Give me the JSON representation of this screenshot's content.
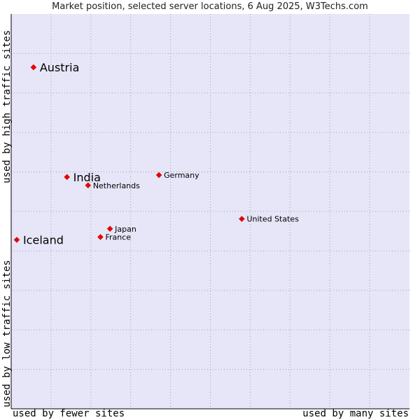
{
  "chart_data": {
    "type": "scatter",
    "title": "Market position, selected server locations, 6 Aug 2025, W3Techs.com",
    "xlabel_low": "used by fewer sites",
    "xlabel_high": "used by many sites",
    "ylabel_low": "used by low traffic sites",
    "ylabel_high": "used by high traffic sites",
    "xlim": [
      0,
      100
    ],
    "ylim": [
      0,
      100
    ],
    "grid": true,
    "colors": {
      "plot_bg": "#e6e6f8",
      "grid": "#a0a0b8",
      "marker": "#ee0000",
      "axis": "#000000"
    },
    "points": [
      {
        "label": "Austria",
        "x": 5.6,
        "y": 86.5,
        "size": "large"
      },
      {
        "label": "India",
        "x": 14.0,
        "y": 58.7,
        "size": "large"
      },
      {
        "label": "Iceland",
        "x": 1.4,
        "y": 42.8,
        "size": "large"
      },
      {
        "label": "Netherlands",
        "x": 19.3,
        "y": 56.6,
        "size": "small"
      },
      {
        "label": "Germany",
        "x": 37.1,
        "y": 59.2,
        "size": "small"
      },
      {
        "label": "United States",
        "x": 57.9,
        "y": 48.1,
        "size": "small"
      },
      {
        "label": "Japan",
        "x": 24.8,
        "y": 45.6,
        "size": "small"
      },
      {
        "label": "France",
        "x": 22.4,
        "y": 43.5,
        "size": "small"
      }
    ]
  }
}
